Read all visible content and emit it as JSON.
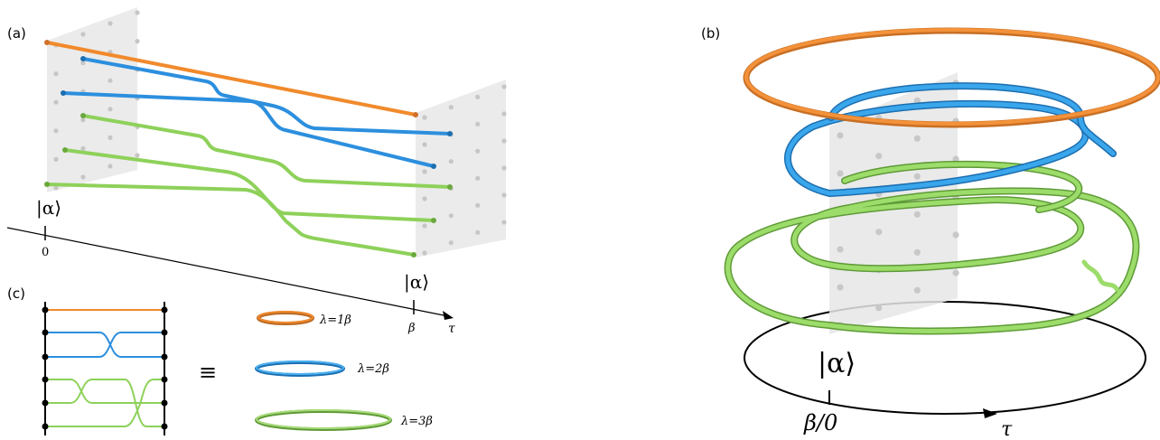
{
  "panels": {
    "a": {
      "label": "(a)",
      "state_left": "|α⟩",
      "state_right": "|α⟩",
      "tick_zero": "0",
      "tick_beta": "β",
      "axis": "τ"
    },
    "b": {
      "label": "(b)",
      "state": "|α⟩",
      "tick": "β/0",
      "axis": "τ"
    },
    "c": {
      "label": "(c)",
      "equiv": "≡",
      "loops": [
        {
          "label": "λ=1β",
          "color": "#f18a2c"
        },
        {
          "label": "λ=2β",
          "color": "#2c8fde"
        },
        {
          "label": "λ=3β",
          "color": "#8ed15a"
        }
      ]
    }
  },
  "colors": {
    "orange": "#f18a2c",
    "blue": "#2c8fde",
    "green": "#8ed15a",
    "plane": "#e6e6e6",
    "dot": "#c8c8c8"
  }
}
